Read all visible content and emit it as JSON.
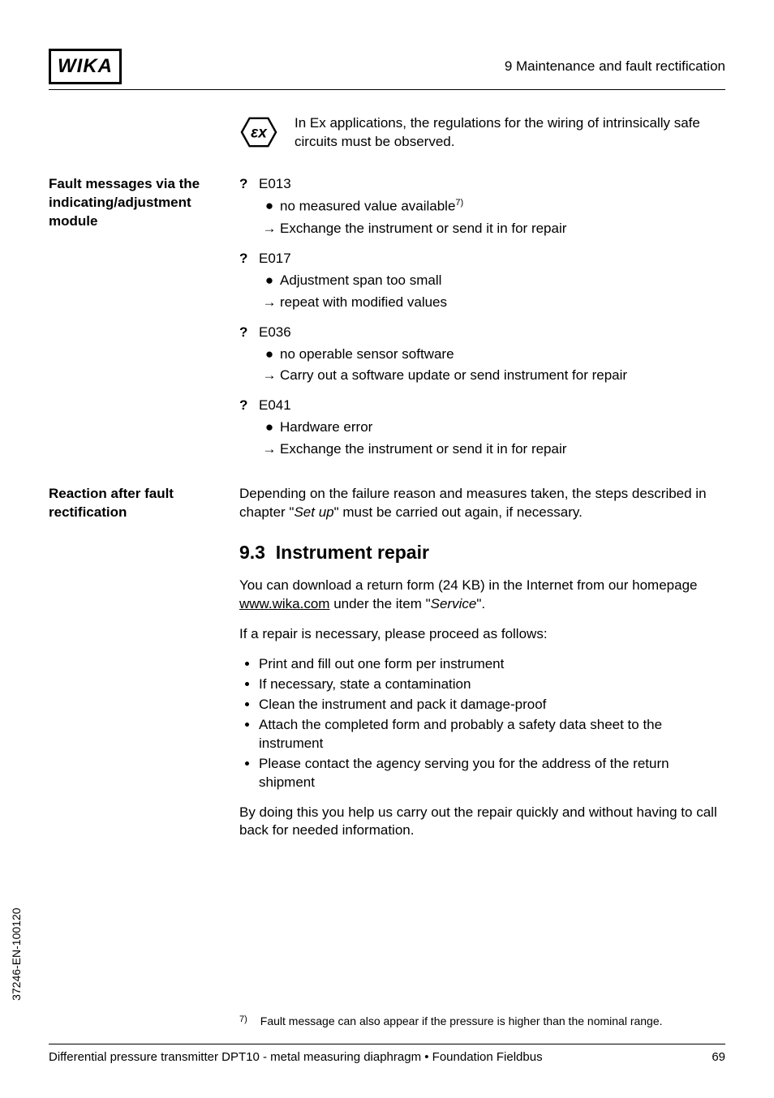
{
  "header": {
    "logo": "WIKA",
    "chapter": "9   Maintenance and fault rectification"
  },
  "ex_note": "In Ex applications, the regulations for the wiring of intrinsically safe circuits must be observed.",
  "side_labels": {
    "faults": "Fault messages via the indicating/adjustment module",
    "reaction": "Reaction after fault rectification"
  },
  "faults": [
    {
      "code": "E013",
      "bullet": "no measured value available",
      "bullet_sup": "7)",
      "action": "Exchange the instrument or send it in for repair"
    },
    {
      "code": "E017",
      "bullet": "Adjustment span too small",
      "action": "repeat with modified values"
    },
    {
      "code": "E036",
      "bullet": "no operable sensor software",
      "action": "Carry out a software update or send instrument for repair"
    },
    {
      "code": "E041",
      "bullet": "Hardware error",
      "action": "Exchange the instrument or send it in for repair"
    }
  ],
  "reaction_text_a": "Depending on the failure reason and measures taken, the steps described in chapter \"",
  "reaction_text_italic": "Set up",
  "reaction_text_b": "\" must be carried out again, if necessary.",
  "section": {
    "number": "9.3",
    "title": "Instrument repair"
  },
  "repair_p1_a": "You can download a return form (24 KB) in the Internet from our homepage ",
  "repair_p1_link": "www.wika.com",
  "repair_p1_b": " under the item \"",
  "repair_p1_italic": "Service",
  "repair_p1_c": "\".",
  "repair_p2": "If a repair is necessary, please proceed as follows:",
  "repair_bullets": [
    "Print and fill out one form per instrument",
    "If necessary, state a contamination",
    "Clean the instrument and pack it damage-proof",
    "Attach the completed form and probably a safety data sheet to the instrument",
    "Please contact the agency serving you for the address of the return shipment"
  ],
  "repair_p3": "By doing this you help us carry out the repair quickly and without having to call back for needed information.",
  "footnote": {
    "mark": "7)",
    "text": "Fault message can also appear if the pressure is higher than the nominal range."
  },
  "footer": {
    "text": "Differential pressure transmitter DPT10 - metal measuring diaphragm • Foundation Fieldbus",
    "page": "69"
  },
  "side_code": "37246-EN-100120",
  "glyphs": {
    "q": "?",
    "bullet": "●",
    "arrow": "→"
  }
}
